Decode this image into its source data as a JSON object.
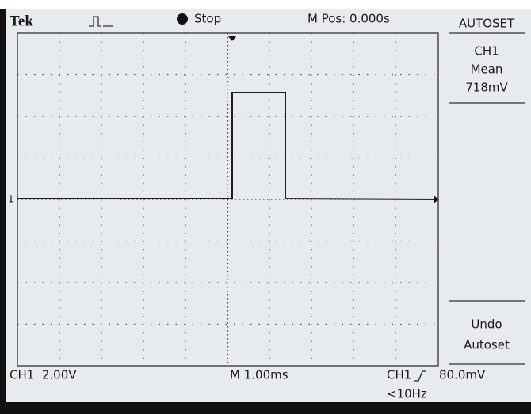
{
  "header": {
    "brand": "Tek",
    "state": "Stop",
    "position": "M Pos: 0.000s"
  },
  "menu": {
    "title": "AUTOSET",
    "channel": "CH1",
    "measure": "Mean",
    "reading": "718mV",
    "undo_line1": "Undo",
    "undo_line2": "Autoset"
  },
  "channel_marker": "1",
  "footer": {
    "channel_scale": "CH1  2.00V",
    "time_scale": "M 1.00ms",
    "trigger_source": "CH1",
    "trigger_level": "80.0mV",
    "frequency": "<10Hz"
  }
}
